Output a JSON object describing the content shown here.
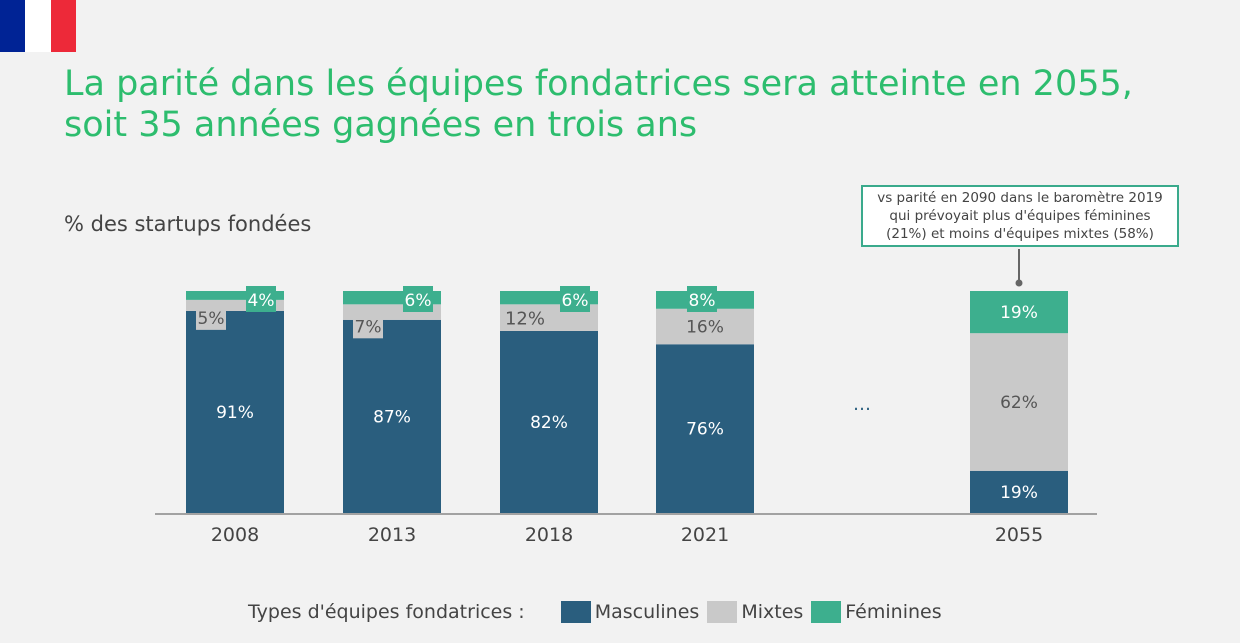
{
  "flag": {
    "colors": [
      "#002395",
      "#ffffff",
      "#ed2939"
    ]
  },
  "title_lines": [
    "La parité dans les équipes fondatrices sera atteinte en 2055,",
    "soit 35 années gagnées en trois ans"
  ],
  "note": {
    "lines": [
      "vs parité en 2090 dans le baromètre 2019",
      "qui prévoyait plus d'équipes féminines",
      "(21%) et moins d'équipes mixtes (58%)"
    ]
  },
  "legend": {
    "title": "Types d'équipes fondatrices :"
  },
  "ellipsis": "…",
  "chart_data": {
    "type": "bar",
    "stacked": true,
    "title": "La parité dans les équipes fondatrices sera atteinte en 2055, soit 35 années gagnées en trois ans",
    "ylabel": "% des startups fondées",
    "xlabel": "",
    "categories": [
      "2008",
      "2013",
      "2018",
      "2021",
      "2055"
    ],
    "ylim": [
      0,
      100
    ],
    "grid": false,
    "legend_position": "bottom",
    "series": [
      {
        "name": "Masculines",
        "color": "#2a5e7e",
        "values": [
          91,
          87,
          82,
          76,
          19
        ],
        "labels": [
          "91%",
          "87%",
          "82%",
          "76%",
          "19%"
        ]
      },
      {
        "name": "Mixtes",
        "color": "#c9c9c9",
        "values": [
          5,
          7,
          12,
          16,
          62
        ],
        "labels": [
          "5%",
          "7%",
          "12%",
          "16%",
          "62%"
        ]
      },
      {
        "name": "Féminines",
        "color": "#3daf8e",
        "values": [
          4,
          6,
          6,
          8,
          19
        ],
        "labels": [
          "4%",
          "6%",
          "6%",
          "8%",
          "19%"
        ]
      }
    ]
  }
}
